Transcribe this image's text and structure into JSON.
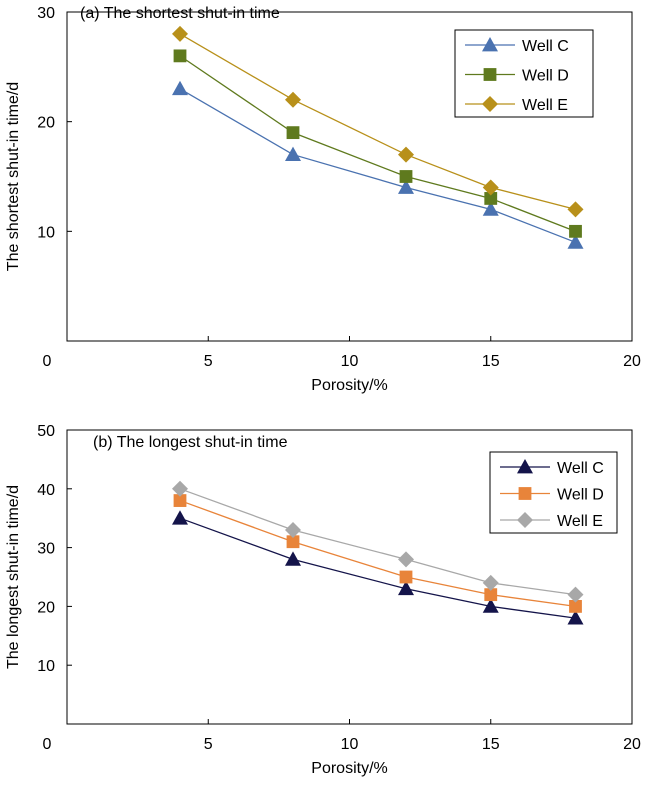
{
  "chart_data": [
    {
      "type": "line",
      "title": "(a) The shortest shut-in time",
      "xlabel": "Porosity/%",
      "ylabel": "The shortest shut-in time/d",
      "xlim": [
        0,
        20
      ],
      "ylim": [
        0,
        30
      ],
      "xticks": [
        0,
        5,
        10,
        15,
        20
      ],
      "yticks": [
        10,
        20,
        30
      ],
      "legend": "top-right",
      "x": [
        4,
        8,
        12,
        15,
        18
      ],
      "series": [
        {
          "name": "Well C",
          "values": [
            23,
            17,
            14,
            12,
            9
          ],
          "color": "#4a72b0",
          "marker": "triangle"
        },
        {
          "name": "Well D",
          "values": [
            26,
            19,
            15,
            13,
            10
          ],
          "color": "#5f7a1e",
          "marker": "square"
        },
        {
          "name": "Well E",
          "values": [
            28,
            22,
            17,
            14,
            12
          ],
          "color": "#b8901a",
          "marker": "diamond"
        }
      ]
    },
    {
      "type": "line",
      "title": "(b) The longest shut-in time",
      "xlabel": "Porosity/%",
      "ylabel": "The longest shut-in time/d",
      "xlim": [
        0,
        20
      ],
      "ylim": [
        0,
        50
      ],
      "xticks": [
        0,
        5,
        10,
        15,
        20
      ],
      "yticks": [
        10,
        20,
        30,
        40,
        50
      ],
      "legend": "top-right",
      "x": [
        4,
        8,
        12,
        15,
        18
      ],
      "series": [
        {
          "name": "Well C",
          "values": [
            35,
            28,
            23,
            20,
            18
          ],
          "color": "#14144a",
          "marker": "triangle"
        },
        {
          "name": "Well D",
          "values": [
            38,
            31,
            25,
            22,
            20
          ],
          "color": "#e8843a",
          "marker": "square"
        },
        {
          "name": "Well E",
          "values": [
            40,
            33,
            28,
            24,
            22
          ],
          "color": "#a8a8a8",
          "marker": "diamond"
        }
      ]
    }
  ]
}
